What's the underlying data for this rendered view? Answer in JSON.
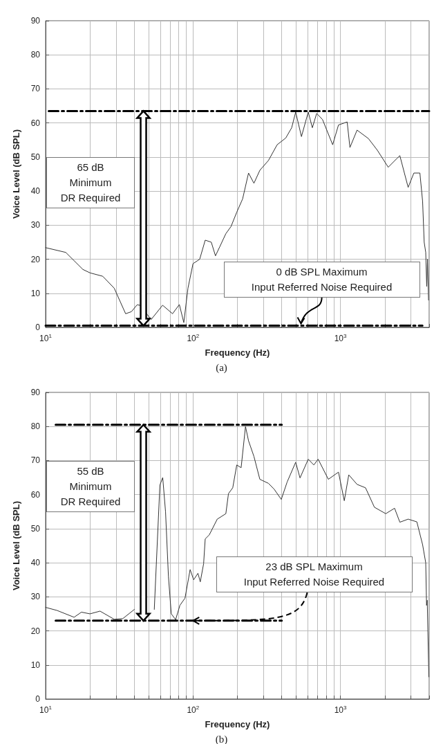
{
  "chart_data": [
    {
      "type": "line",
      "title": "(a)",
      "xlabel": "Frequency (Hz)",
      "ylabel": "Voice Level (dB SPL)",
      "log": "x",
      "grid": true,
      "xlim": [
        10,
        4000
      ],
      "ylim": [
        0,
        90
      ],
      "xticks": [
        {
          "value": 10,
          "label": "10$^{1}$"
        },
        {
          "value": 20,
          "label": null
        },
        {
          "value": 30,
          "label": null
        },
        {
          "value": 40,
          "label": null
        },
        {
          "value": 50,
          "label": null
        },
        {
          "value": 60,
          "label": null
        },
        {
          "value": 70,
          "label": null
        },
        {
          "value": 80,
          "label": null
        },
        {
          "value": 90,
          "label": null
        },
        {
          "value": 100,
          "label": "10$^{2}$"
        },
        {
          "value": 200,
          "label": null
        },
        {
          "value": 300,
          "label": null
        },
        {
          "value": 400,
          "label": null
        },
        {
          "value": 500,
          "label": null
        },
        {
          "value": 600,
          "label": null
        },
        {
          "value": 700,
          "label": null
        },
        {
          "value": 800,
          "label": null
        },
        {
          "value": 900,
          "label": null
        },
        {
          "value": 1000,
          "label": "10$^{3}$"
        },
        {
          "value": 2000,
          "label": null
        },
        {
          "value": 3000,
          "label": null
        },
        {
          "value": 4000,
          "label": null
        }
      ],
      "yticks": [
        0,
        10,
        20,
        30,
        40,
        50,
        60,
        70,
        80,
        90
      ],
      "series": [
        {
          "color": "#333333",
          "x": [
            10,
            13.7,
            17.9,
            20,
            24.4,
            29.2,
            34.9,
            38.2,
            41.7,
            43.6,
            52,
            62.2,
            72.6,
            80.8,
            86.6,
            92.4,
            100,
            111,
            121,
            133,
            142,
            152,
            167,
            181,
            198,
            217,
            238,
            259,
            284,
            325,
            372,
            426,
            467,
            497,
            544,
            605,
            645,
            690,
            756,
            886,
            970,
            1111,
            1160,
            1297,
            1550,
            1780,
            2110,
            2420,
            2530,
            2880,
            3150,
            3460,
            3610,
            3700,
            3790,
            3850,
            3900,
            3960
          ],
          "values": [
            23.4,
            22,
            17,
            16,
            15,
            11.5,
            4,
            4.6,
            6.6,
            6.5,
            2.3,
            6.5,
            4,
            6.7,
            1.4,
            11.5,
            18.7,
            20,
            25.6,
            25,
            21,
            23.7,
            27.5,
            29.6,
            33.8,
            37.7,
            45.3,
            42.3,
            46.1,
            49,
            53.6,
            55.6,
            58.6,
            63.2,
            56,
            63.2,
            58.6,
            62.8,
            61,
            53.6,
            59.4,
            60.3,
            52.8,
            57.9,
            55.4,
            52,
            47,
            49.6,
            50.4,
            41.1,
            45.3,
            45.3,
            37,
            25,
            22,
            12,
            20,
            8
          ]
        },
        {
          "color": "#000000",
          "line_style": "dashed",
          "x": [
            10.5,
            4000
          ],
          "values": [
            63.5,
            63.5
          ]
        },
        {
          "color": "#000000",
          "line_style": "dashed",
          "x": [
            10,
            3600
          ],
          "values": [
            0.5,
            0.5
          ]
        }
      ],
      "annotations": [
        "65 dB\nMinimum\nDR Required",
        {
          "text": "0 dB SPL Maximum\nInput Referred Noise Required",
          "x": 540,
          "y": 0.5
        }
      ]
    },
    {
      "type": "line",
      "title": "(b)",
      "xlabel": "Frequency (Hz)",
      "ylabel": "Voice Level (dB SPL)",
      "log": "x",
      "grid": true,
      "xlim": [
        10,
        4000
      ],
      "ylim": [
        0,
        90
      ],
      "xticks": [
        {
          "value": 10,
          "label": "10$^{1}$"
        },
        {
          "value": 20,
          "label": null
        },
        {
          "value": 30,
          "label": null
        },
        {
          "value": 40,
          "label": null
        },
        {
          "value": 50,
          "label": null
        },
        {
          "value": 60,
          "label": null
        },
        {
          "value": 70,
          "label": null
        },
        {
          "value": 80,
          "label": null
        },
        {
          "value": 90,
          "label": null
        },
        {
          "value": 100,
          "label": "10$^{2}$"
        },
        {
          "value": 200,
          "label": null
        },
        {
          "value": 300,
          "label": null
        },
        {
          "value": 400,
          "label": null
        },
        {
          "value": 500,
          "label": null
        },
        {
          "value": 600,
          "label": null
        },
        {
          "value": 700,
          "label": null
        },
        {
          "value": 800,
          "label": null
        },
        {
          "value": 900,
          "label": null
        },
        {
          "value": 1000,
          "label": "10$^{3}$"
        },
        {
          "value": 2000,
          "label": null
        },
        {
          "value": 3000,
          "label": null
        },
        {
          "value": 4000,
          "label": null
        }
      ],
      "yticks": [
        0,
        10,
        20,
        30,
        40,
        50,
        60,
        70,
        80,
        90
      ],
      "series": [
        {
          "color": "#333333",
          "x": [
            10,
            11.95,
            15.6,
            17.5,
            20,
            23.4,
            29.2,
            33.4,
            40,
            43.7,
            54.6,
            59.6,
            62.3,
            65.1,
            68.1,
            71.2,
            76.2,
            81.5,
            88.2,
            95.6,
            101,
            108,
            112,
            118,
            121,
            129,
            146,
            167,
            174,
            186,
            198,
            212,
            227,
            238,
            259,
            284,
            325,
            355,
            397,
            435,
            497,
            532,
            605,
            660,
            706,
            828,
            970,
            1062,
            1139,
            1297,
            1480,
            1700,
            2030,
            2330,
            2530,
            2880,
            3300,
            3610,
            3790,
            3840,
            3880,
            3980
          ],
          "values": [
            26.9,
            26,
            24,
            25.5,
            25,
            25.8,
            23.4,
            23.6,
            26.3,
            null,
            26.3,
            62.8,
            65,
            55,
            36,
            25,
            23.3,
            27.5,
            29.6,
            38,
            35,
            36.9,
            34.4,
            39.7,
            47,
            48.2,
            52.8,
            54.4,
            60.3,
            62,
            68.7,
            67.9,
            80,
            75.8,
            71.2,
            64.5,
            63.3,
            61.6,
            58.6,
            63.7,
            69.5,
            64.9,
            70.4,
            68.7,
            70.4,
            64.5,
            66.6,
            58.2,
            65.8,
            63,
            62,
            56.3,
            54.4,
            56,
            51.9,
            52.8,
            52,
            45.3,
            40,
            27.5,
            29,
            6.5
          ]
        },
        {
          "color": "#000000",
          "line_style": "dashed",
          "x": [
            11.7,
            400
          ],
          "values": [
            80.5,
            80.5
          ]
        },
        {
          "color": "#000000",
          "line_style": "dashed",
          "x": [
            11.7,
            400
          ],
          "values": [
            23,
            23
          ]
        }
      ],
      "annotations": [
        "55 dB\nMinimum\nDR Required",
        {
          "text": "23 dB SPL Maximum\nInput Referred Noise Required",
          "x": 100,
          "y": 23
        }
      ]
    }
  ]
}
